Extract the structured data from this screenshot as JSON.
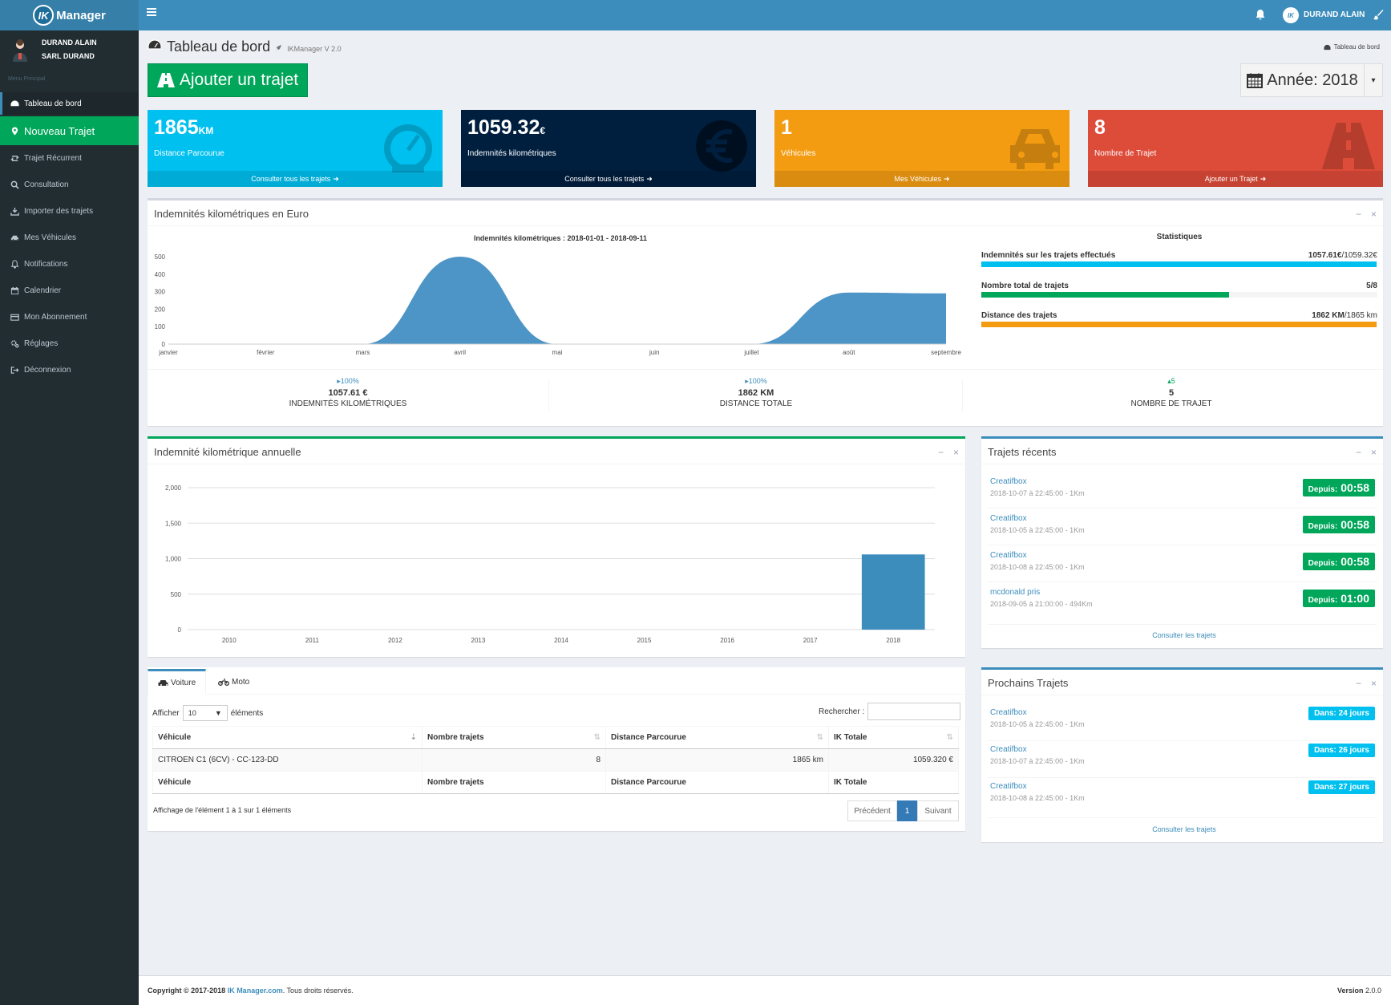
{
  "app": {
    "logo_mark": "IK",
    "logo_text": "Manager"
  },
  "header": {
    "user_avatar": "IK",
    "user_name": "DURAND ALAIN"
  },
  "sidebar": {
    "user_line1": "DURAND ALAIN",
    "user_line2": "SARL DURAND",
    "menu_header": "Menu Principal",
    "items": [
      {
        "label": "Tableau de bord",
        "icon": "dashboard-icon"
      },
      {
        "label": "Nouveau Trajet",
        "icon": "map-marker-icon"
      },
      {
        "label": "Trajet Récurrent",
        "icon": "retweet-icon"
      },
      {
        "label": "Consultation",
        "icon": "search-icon"
      },
      {
        "label": "Importer des trajets",
        "icon": "download-icon"
      },
      {
        "label": "Mes Véhicules",
        "icon": "car-icon"
      },
      {
        "label": "Notifications",
        "icon": "bell-icon"
      },
      {
        "label": "Calendrier",
        "icon": "calendar-icon"
      },
      {
        "label": "Mon Abonnement",
        "icon": "credit-card-icon"
      },
      {
        "label": "Réglages",
        "icon": "cogs-icon"
      },
      {
        "label": "Déconnexion",
        "icon": "sign-out-icon"
      }
    ]
  },
  "page": {
    "title": "Tableau de bord",
    "subtitle": "IKManager V 2.0",
    "breadcrumb": "Tableau de bord",
    "add_button": "Ajouter un trajet",
    "year_label": "Année: 2018"
  },
  "stats": [
    {
      "value": "1865",
      "unit": "KM",
      "label": "Distance Parcourue",
      "link": "Consulter tous les trajets",
      "color": "#00c0ef",
      "icon": "tachometer-icon"
    },
    {
      "value": "1059.32",
      "unit": "€",
      "label": "Indemnités kilométriques",
      "link": "Consulter tous les trajets",
      "color": "#001f3f",
      "icon": "euro-icon"
    },
    {
      "value": "1",
      "unit": "",
      "label": "Véhicules",
      "link": "Mes Véhicules",
      "color": "#f39c12",
      "icon": "car-icon"
    },
    {
      "value": "8",
      "unit": "",
      "label": "Nombre de Trajet",
      "link": "Ajouter un Trajet",
      "color": "#dd4b39",
      "icon": "road-icon"
    }
  ],
  "ik_box": {
    "title": "Indemnités kilométriques en Euro",
    "stats_title": "Statistiques",
    "progress": [
      {
        "label": "Indemnités sur les trajets effectués",
        "value_bold": "1057.61€",
        "value_rest": "/1059.32€",
        "percent": 99.8,
        "color": "#00c0ef"
      },
      {
        "label": "Nombre total de trajets",
        "value_bold": "5/8",
        "value_rest": "",
        "percent": 62.5,
        "color": "#00a65a"
      },
      {
        "label": "Distance des trajets",
        "value_bold": "1862 KM",
        "value_rest": "/1865 km",
        "percent": 99.8,
        "color": "#f39c12"
      }
    ],
    "descriptions": [
      {
        "pct": "100%",
        "value": "1057.61 €",
        "label": "INDEMNITÉS KILOMÉTRIQUES"
      },
      {
        "pct": "100%",
        "value": "1862 KM",
        "label": "DISTANCE TOTALE"
      },
      {
        "pct": "5",
        "value": "5",
        "label": "NOMBRE DE TRAJET"
      }
    ]
  },
  "annual_box": {
    "title": "Indemnité kilométrique annuelle"
  },
  "recent_box": {
    "title": "Trajets récents",
    "link": "Consulter les trajets",
    "items": [
      {
        "name": "Creatifbox",
        "detail": "2018-10-07 à 22:45:00 - 1Km",
        "badge_label": "Depuis:",
        "badge_value": "00:58"
      },
      {
        "name": "Creatifbox",
        "detail": "2018-10-05 à 22:45:00 - 1Km",
        "badge_label": "Depuis:",
        "badge_value": "00:58"
      },
      {
        "name": "Creatifbox",
        "detail": "2018-10-08 à 22:45:00 - 1Km",
        "badge_label": "Depuis:",
        "badge_value": "00:58"
      },
      {
        "name": "mcdonald pris",
        "detail": "2018-09-05 à 21:00:00 - 494Km",
        "badge_label": "Depuis:",
        "badge_value": "01:00"
      }
    ]
  },
  "next_box": {
    "title": "Prochains Trajets",
    "link": "Consulter les trajets",
    "items": [
      {
        "name": "Creatifbox",
        "detail": "2018-10-05 à 22:45:00 - 1Km",
        "badge": "Dans: 24 jours"
      },
      {
        "name": "Creatifbox",
        "detail": "2018-10-07 à 22:45:00 - 1Km",
        "badge": "Dans: 26 jours"
      },
      {
        "name": "Creatifbox",
        "detail": "2018-10-08 à 22:45:00 - 1Km",
        "badge": "Dans: 27 jours"
      }
    ]
  },
  "vehicles": {
    "tabs": [
      "Voiture",
      "Moto"
    ],
    "show_label": "Afficher",
    "length_value": "10",
    "entries_label": "éléments",
    "search_label": "Rechercher :",
    "columns": [
      "Véhicule",
      "Nombre trajets",
      "Distance Parcourue",
      "IK Totale"
    ],
    "rows": [
      [
        "CITROEN C1 (6CV) - CC-123-DD",
        "8",
        "1865 km",
        "1059.320 €"
      ]
    ],
    "info": "Affichage de l'élément 1 à 1 sur 1 éléments",
    "prev": "Précédent",
    "page": "1",
    "next": "Suivant"
  },
  "footer": {
    "copyright": "Copyright © 2017-2018",
    "brand": "IK Manager.com",
    "rights": ". Tous droits réservés.",
    "version_label": "Version",
    "version": "2.0.0"
  },
  "chart_data": [
    {
      "type": "area",
      "title": "Indemnités kilométriques : 2018-01-01 - 2018-09-11",
      "categories": [
        "janvier",
        "février",
        "mars",
        "avril",
        "mai",
        "juin",
        "juillet",
        "août",
        "septembre"
      ],
      "values": [
        0,
        0,
        0,
        500,
        0,
        0,
        0,
        295,
        290
      ],
      "ylim": [
        0,
        500
      ],
      "yticks": [
        0,
        100,
        200,
        300,
        400,
        500
      ],
      "color": "#4d94c7",
      "grid": false
    },
    {
      "type": "bar",
      "categories": [
        "2010",
        "2011",
        "2012",
        "2013",
        "2014",
        "2015",
        "2016",
        "2017",
        "2018"
      ],
      "values": [
        0,
        0,
        0,
        0,
        0,
        0,
        0,
        0,
        1059.32
      ],
      "ylim": [
        0,
        2000
      ],
      "yticks": [
        "0",
        "500",
        "1,000",
        "1,500",
        "2,000"
      ],
      "color": "#3c8dbc",
      "grid": true
    }
  ]
}
